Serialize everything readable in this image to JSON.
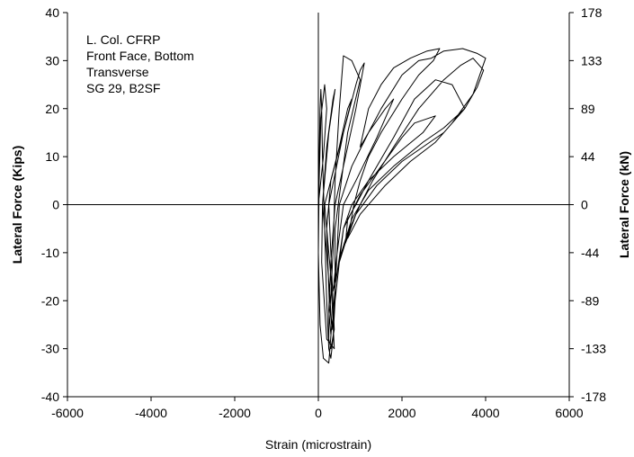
{
  "chart_data": {
    "type": "line",
    "xlabel": "Strain (microstrain)",
    "ylabel": "Lateral Force (Kips)",
    "y2label": "Lateral Force (kN)",
    "xlim": [
      -6000,
      6000
    ],
    "ylim": [
      -40,
      40
    ],
    "xticks": [
      -6000,
      -4000,
      -2000,
      0,
      2000,
      4000,
      6000
    ],
    "yticks": [
      -40,
      -30,
      -20,
      -10,
      0,
      10,
      20,
      30,
      40
    ],
    "y2ticks": [
      "-178",
      "-133",
      "-89",
      "-44",
      "0",
      "44",
      "89",
      "133",
      "178"
    ],
    "annotation": [
      "L. Col. CFRP",
      "Front Face, Bottom",
      "Transverse",
      "SG 29, B2SF"
    ],
    "grid": false,
    "series": [
      {
        "values": [
          [
            0,
            0
          ],
          [
            120,
            10
          ],
          [
            200,
            20
          ],
          [
            150,
            25
          ],
          [
            60,
            18
          ],
          [
            20,
            5
          ],
          [
            0,
            -10
          ],
          [
            40,
            -25
          ],
          [
            120,
            -32
          ],
          [
            250,
            -33
          ],
          [
            320,
            -25
          ],
          [
            200,
            -10
          ],
          [
            100,
            0
          ],
          [
            200,
            12
          ],
          [
            350,
            22
          ],
          [
            400,
            24
          ],
          [
            250,
            15
          ],
          [
            100,
            0
          ],
          [
            80,
            -12
          ],
          [
            200,
            -28
          ],
          [
            380,
            -30
          ],
          [
            300,
            -15
          ],
          [
            150,
            0
          ],
          [
            500,
            12
          ],
          [
            700,
            20
          ],
          [
            800,
            22
          ],
          [
            600,
            15
          ],
          [
            300,
            5
          ],
          [
            200,
            -5
          ],
          [
            260,
            -20
          ],
          [
            250,
            -28
          ],
          [
            300,
            -30
          ],
          [
            380,
            -26
          ],
          [
            300,
            -10
          ],
          [
            250,
            0
          ],
          [
            600,
            15
          ],
          [
            900,
            25
          ],
          [
            1000,
            28
          ],
          [
            1100,
            29.5
          ],
          [
            900,
            20
          ],
          [
            600,
            8
          ],
          [
            400,
            0
          ],
          [
            300,
            -12
          ],
          [
            250,
            -22
          ],
          [
            300,
            -27
          ],
          [
            400,
            -20
          ],
          [
            400,
            -5
          ],
          [
            700,
            15
          ],
          [
            1000,
            26
          ],
          [
            800,
            30
          ],
          [
            600,
            31
          ],
          [
            500,
            20
          ],
          [
            400,
            5
          ],
          [
            350,
            -10
          ],
          [
            280,
            -22
          ],
          [
            330,
            -26
          ],
          [
            420,
            -15
          ],
          [
            500,
            0
          ],
          [
            800,
            8
          ],
          [
            1200,
            15
          ],
          [
            1600,
            20
          ],
          [
            1800,
            22
          ],
          [
            1400,
            14
          ],
          [
            900,
            5
          ],
          [
            600,
            0
          ],
          [
            450,
            -10
          ],
          [
            350,
            -18
          ],
          [
            420,
            -16
          ],
          [
            600,
            -5
          ],
          [
            1000,
            2
          ],
          [
            1500,
            8
          ],
          [
            2000,
            14
          ],
          [
            2300,
            17
          ],
          [
            2800,
            18.5
          ],
          [
            2500,
            15
          ],
          [
            1800,
            10
          ],
          [
            1200,
            5
          ],
          [
            800,
            0
          ],
          [
            600,
            -5
          ],
          [
            500,
            -12
          ],
          [
            550,
            -10
          ],
          [
            800,
            -3
          ],
          [
            1200,
            3
          ],
          [
            1800,
            8
          ],
          [
            2500,
            13
          ],
          [
            3000,
            16
          ],
          [
            3500,
            20
          ],
          [
            3200,
            25
          ],
          [
            2800,
            26
          ],
          [
            2300,
            22
          ],
          [
            1800,
            14
          ],
          [
            1200,
            5
          ],
          [
            900,
            0
          ],
          [
            700,
            -3
          ],
          [
            650,
            -8
          ],
          [
            900,
            -2
          ],
          [
            1400,
            4
          ],
          [
            2000,
            9
          ],
          [
            2500,
            12
          ],
          [
            3000,
            15
          ],
          [
            3500,
            20
          ],
          [
            3800,
            24.5
          ],
          [
            3950,
            28
          ],
          [
            3700,
            30.5
          ],
          [
            3400,
            29
          ],
          [
            3000,
            26
          ],
          [
            2400,
            20
          ],
          [
            1800,
            12
          ],
          [
            1300,
            5
          ],
          [
            1000,
            0
          ],
          [
            800,
            -4
          ],
          [
            700,
            -7
          ],
          [
            1000,
            -2
          ],
          [
            1600,
            4
          ],
          [
            2200,
            9
          ],
          [
            2800,
            13
          ],
          [
            3200,
            17
          ],
          [
            3700,
            23
          ],
          [
            4000,
            30.5
          ],
          [
            3800,
            31.5
          ],
          [
            3450,
            32.5
          ],
          [
            3000,
            32
          ],
          [
            2700,
            30.5
          ],
          [
            2400,
            30
          ],
          [
            2000,
            27
          ],
          [
            1500,
            20
          ],
          [
            1200,
            15
          ],
          [
            1000,
            12
          ],
          [
            1200,
            20
          ],
          [
            1500,
            25
          ],
          [
            1800,
            28.5
          ],
          [
            2200,
            30.5
          ],
          [
            2600,
            32
          ],
          [
            2900,
            32.5
          ],
          [
            2750,
            30
          ],
          [
            2400,
            27
          ],
          [
            2000,
            22
          ],
          [
            1500,
            15
          ],
          [
            1200,
            10
          ],
          [
            1000,
            5
          ],
          [
            850,
            0
          ],
          [
            750,
            -5
          ],
          [
            500,
            -12
          ],
          [
            400,
            -20
          ],
          [
            350,
            -28
          ],
          [
            300,
            -32
          ],
          [
            250,
            -30
          ],
          [
            200,
            -20
          ],
          [
            150,
            -5
          ],
          [
            100,
            10
          ],
          [
            80,
            20
          ],
          [
            60,
            24
          ],
          [
            40,
            20
          ],
          [
            20,
            10
          ],
          [
            0,
            0
          ]
        ]
      }
    ]
  }
}
